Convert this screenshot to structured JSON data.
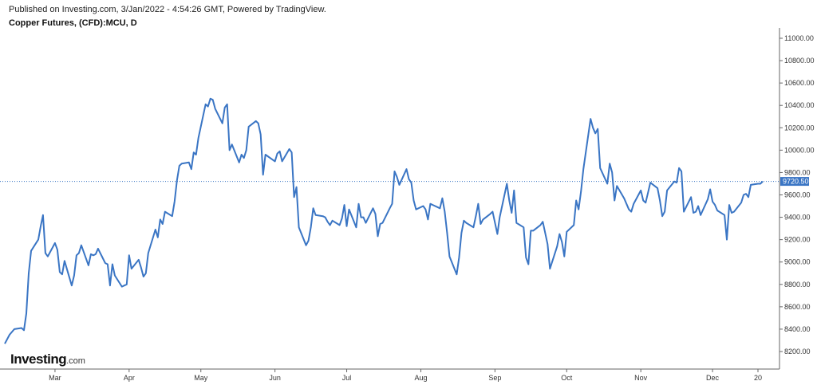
{
  "header": {
    "published": "Published on Investing.com, 3/Jan/2022 - 4:54:26 GMT, Powered by TradingView.",
    "title": "Copper Futures, (CFD):MCU, D"
  },
  "logo": {
    "main": "Investing",
    "suffix": ".com"
  },
  "colors": {
    "line": "#3a75c4",
    "price_tag": "#3a75c4",
    "axis": "#666666",
    "price_line": "#3a75c4"
  },
  "chart_data": {
    "type": "line",
    "title": "Copper Futures, (CFD):MCU, D",
    "xlabel": "",
    "ylabel": "",
    "ylim": [
      8100,
      11050
    ],
    "grid": false,
    "yticks": [
      8200,
      8400,
      8600,
      8800,
      9000,
      9200,
      9400,
      9600,
      9800,
      10000,
      10200,
      10400,
      10600,
      10800,
      11000
    ],
    "ytick_labels": [
      "8200.00",
      "8400.00",
      "8600.00",
      "8800.00",
      "9000.00",
      "9200.00",
      "9400.00",
      "9600.00",
      "9800.00",
      "10000.00",
      "10200.00",
      "10400.00",
      "10600.00",
      "10800.00",
      "11000.00"
    ],
    "xticks": [
      "2021-03-01",
      "2021-04-01",
      "2021-05-01",
      "2021-06-01",
      "2021-07-01",
      "2021-08-01",
      "2021-09-01",
      "2021-10-01",
      "2021-11-01",
      "2021-12-01",
      "2021-12-20"
    ],
    "xtick_labels": [
      "Mar",
      "Apr",
      "May",
      "Jun",
      "Jul",
      "Aug",
      "Sep",
      "Oct",
      "Nov",
      "Dec",
      "20"
    ],
    "last_price": 9720.5,
    "last_price_label": "9720.50",
    "series": [
      {
        "values": [
          [
            "2021-02-08",
            8270
          ],
          [
            "2021-02-10",
            8350
          ],
          [
            "2021-02-12",
            8400
          ],
          [
            "2021-02-15",
            8410
          ],
          [
            "2021-02-16",
            8390
          ],
          [
            "2021-02-17",
            8540
          ],
          [
            "2021-02-18",
            8900
          ],
          [
            "2021-02-19",
            9100
          ],
          [
            "2021-02-22",
            9200
          ],
          [
            "2021-02-23",
            9320
          ],
          [
            "2021-02-24",
            9420
          ],
          [
            "2021-02-25",
            9080
          ],
          [
            "2021-02-26",
            9050
          ],
          [
            "2021-03-01",
            9170
          ],
          [
            "2021-03-02",
            9110
          ],
          [
            "2021-03-03",
            8910
          ],
          [
            "2021-03-04",
            8890
          ],
          [
            "2021-03-05",
            9010
          ],
          [
            "2021-03-08",
            8790
          ],
          [
            "2021-03-09",
            8880
          ],
          [
            "2021-03-10",
            9060
          ],
          [
            "2021-03-11",
            9080
          ],
          [
            "2021-03-12",
            9150
          ],
          [
            "2021-03-15",
            8970
          ],
          [
            "2021-03-16",
            9070
          ],
          [
            "2021-03-17",
            9060
          ],
          [
            "2021-03-18",
            9070
          ],
          [
            "2021-03-19",
            9120
          ],
          [
            "2021-03-22",
            8990
          ],
          [
            "2021-03-23",
            8980
          ],
          [
            "2021-03-24",
            8790
          ],
          [
            "2021-03-25",
            8980
          ],
          [
            "2021-03-26",
            8880
          ],
          [
            "2021-03-29",
            8780
          ],
          [
            "2021-03-30",
            8790
          ],
          [
            "2021-03-31",
            8800
          ],
          [
            "2021-04-01",
            9060
          ],
          [
            "2021-04-02",
            8940
          ],
          [
            "2021-04-05",
            9020
          ],
          [
            "2021-04-06",
            8950
          ],
          [
            "2021-04-07",
            8870
          ],
          [
            "2021-04-08",
            8900
          ],
          [
            "2021-04-09",
            9080
          ],
          [
            "2021-04-12",
            9290
          ],
          [
            "2021-04-13",
            9220
          ],
          [
            "2021-04-14",
            9380
          ],
          [
            "2021-04-15",
            9340
          ],
          [
            "2021-04-16",
            9450
          ],
          [
            "2021-04-19",
            9410
          ],
          [
            "2021-04-20",
            9540
          ],
          [
            "2021-04-21",
            9730
          ],
          [
            "2021-04-22",
            9860
          ],
          [
            "2021-04-23",
            9880
          ],
          [
            "2021-04-26",
            9890
          ],
          [
            "2021-04-27",
            9830
          ],
          [
            "2021-04-28",
            9980
          ],
          [
            "2021-04-29",
            9960
          ],
          [
            "2021-04-30",
            10110
          ],
          [
            "2021-05-03",
            10410
          ],
          [
            "2021-05-04",
            10390
          ],
          [
            "2021-05-05",
            10460
          ],
          [
            "2021-05-06",
            10450
          ],
          [
            "2021-05-07",
            10370
          ],
          [
            "2021-05-10",
            10240
          ],
          [
            "2021-05-11",
            10380
          ],
          [
            "2021-05-12",
            10410
          ],
          [
            "2021-05-13",
            10000
          ],
          [
            "2021-05-14",
            10050
          ],
          [
            "2021-05-17",
            9890
          ],
          [
            "2021-05-18",
            9960
          ],
          [
            "2021-05-19",
            9930
          ],
          [
            "2021-05-20",
            10000
          ],
          [
            "2021-05-21",
            10210
          ],
          [
            "2021-05-24",
            10260
          ],
          [
            "2021-05-25",
            10240
          ],
          [
            "2021-05-26",
            10140
          ],
          [
            "2021-05-27",
            9780
          ],
          [
            "2021-05-28",
            9960
          ],
          [
            "2021-06-01",
            9900
          ],
          [
            "2021-06-02",
            9970
          ],
          [
            "2021-06-03",
            9990
          ],
          [
            "2021-06-04",
            9900
          ],
          [
            "2021-06-07",
            10010
          ],
          [
            "2021-06-08",
            9980
          ],
          [
            "2021-06-09",
            9580
          ],
          [
            "2021-06-10",
            9670
          ],
          [
            "2021-06-11",
            9310
          ],
          [
            "2021-06-14",
            9150
          ],
          [
            "2021-06-15",
            9190
          ],
          [
            "2021-06-16",
            9310
          ],
          [
            "2021-06-17",
            9480
          ],
          [
            "2021-06-18",
            9420
          ],
          [
            "2021-06-21",
            9410
          ],
          [
            "2021-06-22",
            9400
          ],
          [
            "2021-06-23",
            9360
          ],
          [
            "2021-06-24",
            9330
          ],
          [
            "2021-06-25",
            9370
          ],
          [
            "2021-06-28",
            9330
          ],
          [
            "2021-06-29",
            9390
          ],
          [
            "2021-06-30",
            9510
          ],
          [
            "2021-07-01",
            9320
          ],
          [
            "2021-07-02",
            9470
          ],
          [
            "2021-07-05",
            9310
          ],
          [
            "2021-07-06",
            9520
          ],
          [
            "2021-07-07",
            9400
          ],
          [
            "2021-07-08",
            9400
          ],
          [
            "2021-07-09",
            9350
          ],
          [
            "2021-07-12",
            9480
          ],
          [
            "2021-07-13",
            9430
          ],
          [
            "2021-07-14",
            9230
          ],
          [
            "2021-07-15",
            9340
          ],
          [
            "2021-07-16",
            9350
          ],
          [
            "2021-07-19",
            9480
          ],
          [
            "2021-07-20",
            9520
          ],
          [
            "2021-07-21",
            9810
          ],
          [
            "2021-07-22",
            9760
          ],
          [
            "2021-07-23",
            9690
          ],
          [
            "2021-07-26",
            9830
          ],
          [
            "2021-07-27",
            9740
          ],
          [
            "2021-07-28",
            9710
          ],
          [
            "2021-07-29",
            9550
          ],
          [
            "2021-07-30",
            9470
          ],
          [
            "2021-08-02",
            9500
          ],
          [
            "2021-08-03",
            9470
          ],
          [
            "2021-08-04",
            9380
          ],
          [
            "2021-08-05",
            9520
          ],
          [
            "2021-08-06",
            9510
          ],
          [
            "2021-08-09",
            9480
          ],
          [
            "2021-08-10",
            9570
          ],
          [
            "2021-08-11",
            9450
          ],
          [
            "2021-08-12",
            9260
          ],
          [
            "2021-08-13",
            9050
          ],
          [
            "2021-08-16",
            8890
          ],
          [
            "2021-08-17",
            9040
          ],
          [
            "2021-08-18",
            9260
          ],
          [
            "2021-08-19",
            9370
          ],
          [
            "2021-08-20",
            9350
          ],
          [
            "2021-08-23",
            9310
          ],
          [
            "2021-08-24",
            9410
          ],
          [
            "2021-08-25",
            9520
          ],
          [
            "2021-08-26",
            9340
          ],
          [
            "2021-08-27",
            9380
          ],
          [
            "2021-08-30",
            9430
          ],
          [
            "2021-08-31",
            9450
          ],
          [
            "2021-09-01",
            9350
          ],
          [
            "2021-09-02",
            9250
          ],
          [
            "2021-09-03",
            9400
          ],
          [
            "2021-09-06",
            9700
          ],
          [
            "2021-09-07",
            9550
          ],
          [
            "2021-09-08",
            9440
          ],
          [
            "2021-09-09",
            9640
          ],
          [
            "2021-09-10",
            9350
          ],
          [
            "2021-09-13",
            9310
          ],
          [
            "2021-09-14",
            9040
          ],
          [
            "2021-09-15",
            8980
          ],
          [
            "2021-09-16",
            9280
          ],
          [
            "2021-09-17",
            9280
          ],
          [
            "2021-09-20",
            9330
          ],
          [
            "2021-09-21",
            9360
          ],
          [
            "2021-09-22",
            9260
          ],
          [
            "2021-09-23",
            9160
          ],
          [
            "2021-09-24",
            8940
          ],
          [
            "2021-09-27",
            9140
          ],
          [
            "2021-09-28",
            9250
          ],
          [
            "2021-09-29",
            9180
          ],
          [
            "2021-09-30",
            9050
          ],
          [
            "2021-10-01",
            9270
          ],
          [
            "2021-10-04",
            9330
          ],
          [
            "2021-10-05",
            9550
          ],
          [
            "2021-10-06",
            9470
          ],
          [
            "2021-10-07",
            9630
          ],
          [
            "2021-10-08",
            9830
          ],
          [
            "2021-10-11",
            10280
          ],
          [
            "2021-10-12",
            10200
          ],
          [
            "2021-10-13",
            10150
          ],
          [
            "2021-10-14",
            10190
          ],
          [
            "2021-10-15",
            9840
          ],
          [
            "2021-10-18",
            9700
          ],
          [
            "2021-10-19",
            9880
          ],
          [
            "2021-10-20",
            9800
          ],
          [
            "2021-10-21",
            9550
          ],
          [
            "2021-10-22",
            9680
          ],
          [
            "2021-10-25",
            9570
          ],
          [
            "2021-10-26",
            9520
          ],
          [
            "2021-10-27",
            9470
          ],
          [
            "2021-10-28",
            9450
          ],
          [
            "2021-10-29",
            9520
          ],
          [
            "2021-11-01",
            9640
          ],
          [
            "2021-11-02",
            9550
          ],
          [
            "2021-11-03",
            9530
          ],
          [
            "2021-11-04",
            9620
          ],
          [
            "2021-11-05",
            9710
          ],
          [
            "2021-11-08",
            9660
          ],
          [
            "2021-11-09",
            9550
          ],
          [
            "2021-11-10",
            9410
          ],
          [
            "2021-11-11",
            9450
          ],
          [
            "2021-11-12",
            9640
          ],
          [
            "2021-11-15",
            9720
          ],
          [
            "2021-11-16",
            9710
          ],
          [
            "2021-11-17",
            9840
          ],
          [
            "2021-11-18",
            9810
          ],
          [
            "2021-11-19",
            9450
          ],
          [
            "2021-11-22",
            9580
          ],
          [
            "2021-11-23",
            9440
          ],
          [
            "2021-11-24",
            9450
          ],
          [
            "2021-11-25",
            9500
          ],
          [
            "2021-11-26",
            9420
          ],
          [
            "2021-11-29",
            9560
          ],
          [
            "2021-11-30",
            9650
          ],
          [
            "2021-12-01",
            9540
          ],
          [
            "2021-12-02",
            9510
          ],
          [
            "2021-12-03",
            9460
          ],
          [
            "2021-12-06",
            9420
          ],
          [
            "2021-12-07",
            9200
          ],
          [
            "2021-12-08",
            9510
          ],
          [
            "2021-12-09",
            9440
          ],
          [
            "2021-12-10",
            9450
          ],
          [
            "2021-12-13",
            9530
          ],
          [
            "2021-12-14",
            9600
          ],
          [
            "2021-12-15",
            9610
          ],
          [
            "2021-12-16",
            9580
          ],
          [
            "2021-12-17",
            9690
          ],
          [
            "2021-12-20",
            9700
          ],
          [
            "2021-12-21",
            9700
          ],
          [
            "2021-12-22",
            9720.5
          ]
        ]
      }
    ]
  }
}
